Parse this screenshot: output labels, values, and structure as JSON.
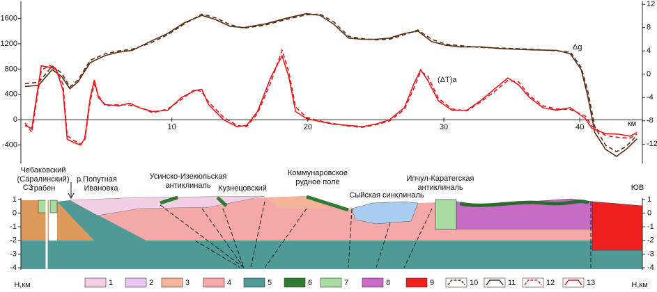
{
  "chart_data": {
    "type": "line",
    "xlabel": "км",
    "annotations": [
      "Δg",
      "(ΔT)a"
    ],
    "xlim": [
      -1.1,
      44.6
    ],
    "xticks": [
      10,
      20,
      30,
      40
    ],
    "ylim": [
      -690,
      1870
    ],
    "yticks": [
      -400,
      0,
      400,
      800,
      1200,
      1600
    ],
    "y2lim": [
      -15.3,
      12.5
    ],
    "y2ticks": [
      -12,
      -8,
      -4,
      0,
      4,
      8,
      12
    ],
    "series": [
      {
        "color": "#5a2d12",
        "style": "solid",
        "axis": "y2",
        "x": [
          -0.8,
          0.2,
          1.2,
          1.9,
          2.5,
          3.1,
          4.0,
          5.1,
          6.1,
          7.1,
          8.4,
          9.7,
          10.9,
          12.2,
          13.2,
          14.3,
          15.3,
          16.8,
          18.4,
          19.9,
          20.9,
          21.9,
          23.0,
          24.0,
          25.0,
          26.0,
          27.1,
          28.1,
          29.1,
          30.1,
          31.2,
          32.7,
          34.2,
          36.3,
          38.3,
          39.3,
          40.1,
          40.6,
          41.1,
          41.9,
          42.7,
          43.4,
          44.2
        ],
        "values": [
          -2.1,
          -1.9,
          0.8,
          -0.4,
          -2.5,
          -1.3,
          2.0,
          3.2,
          3.8,
          4.1,
          5.6,
          7.0,
          8.8,
          10.1,
          9.4,
          8.2,
          8.0,
          8.6,
          9.6,
          10.4,
          10.1,
          8.6,
          6.2,
          6.0,
          6.0,
          6.2,
          7.0,
          7.4,
          5.6,
          5.0,
          4.7,
          4.7,
          4.4,
          4.2,
          4.1,
          3.5,
          0.8,
          -3.9,
          -10.0,
          -12.9,
          -14.1,
          -12.9,
          -11.1
        ]
      },
      {
        "color": "#5a2d12",
        "style": "dashed",
        "axis": "y2",
        "x": [
          -0.8,
          0.2,
          1.2,
          1.9,
          2.5,
          3.1,
          4.0,
          5.1,
          6.1,
          7.1,
          8.4,
          9.7,
          10.9,
          12.2,
          13.2,
          14.3,
          15.3,
          16.8,
          18.4,
          19.9,
          20.9,
          21.9,
          23.0,
          24.0,
          25.0,
          26.0,
          27.1,
          28.1,
          29.1,
          30.1,
          31.2,
          32.7,
          34.2,
          36.3,
          38.3,
          39.3,
          40.1,
          40.6,
          41.1,
          41.9,
          42.7,
          43.4,
          44.2
        ],
        "values": [
          -1.6,
          -1.4,
          1.4,
          0.2,
          -2.2,
          -1.0,
          2.4,
          3.5,
          4.0,
          4.3,
          5.3,
          6.8,
          8.6,
          10.3,
          9.7,
          8.5,
          7.9,
          8.4,
          9.4,
          10.2,
          10.3,
          9.0,
          6.5,
          6.1,
          5.9,
          6.0,
          6.8,
          7.6,
          6.0,
          5.2,
          4.9,
          4.6,
          4.5,
          4.3,
          4.0,
          3.8,
          1.2,
          -3.0,
          -9.0,
          -12.2,
          -13.3,
          -12.4,
          -10.5
        ]
      },
      {
        "color": "#e8161b",
        "style": "solid",
        "x": [
          -0.8,
          -0.3,
          0.4,
          1.0,
          1.5,
          2.0,
          2.3,
          2.8,
          3.3,
          3.6,
          4.0,
          4.3,
          4.6,
          5.1,
          6.1,
          6.9,
          7.6,
          8.6,
          9.7,
          10.7,
          11.7,
          12.2,
          12.7,
          13.8,
          14.8,
          15.5,
          16.3,
          17.3,
          18.1,
          18.6,
          19.1,
          19.9,
          20.9,
          21.9,
          23.0,
          24.0,
          25.0,
          26.0,
          27.1,
          27.8,
          28.3,
          28.8,
          29.6,
          30.6,
          31.7,
          32.7,
          33.7,
          34.7,
          35.5,
          36.3,
          37.3,
          38.3,
          39.3,
          40.4,
          40.9,
          41.9,
          42.9,
          43.7,
          44.2
        ],
        "values": [
          -90,
          -140,
          850,
          830,
          800,
          460,
          -310,
          -360,
          -400,
          -290,
          350,
          630,
          350,
          240,
          220,
          260,
          190,
          130,
          150,
          350,
          460,
          480,
          240,
          0,
          -110,
          -90,
          130,
          680,
          1010,
          680,
          130,
          20,
          -30,
          -70,
          -90,
          -110,
          -70,
          0,
          190,
          570,
          790,
          630,
          300,
          150,
          150,
          300,
          480,
          660,
          550,
          350,
          190,
          150,
          190,
          20,
          -140,
          -220,
          -230,
          -260,
          -200
        ]
      },
      {
        "color": "#e8161b",
        "style": "dashed",
        "x": [
          -0.8,
          -0.3,
          0.4,
          1.0,
          1.5,
          2.0,
          2.3,
          2.8,
          3.3,
          3.6,
          4.0,
          4.3,
          4.6,
          5.1,
          6.1,
          6.9,
          7.6,
          8.6,
          9.7,
          10.7,
          11.7,
          12.2,
          12.7,
          13.8,
          14.8,
          15.5,
          16.3,
          17.3,
          18.1,
          18.6,
          19.1,
          19.9,
          20.9,
          21.9,
          23.0,
          24.0,
          25.0,
          26.0,
          27.1,
          27.8,
          28.3,
          28.8,
          29.6,
          30.6,
          31.7,
          32.7,
          33.7,
          34.7,
          35.5,
          36.3,
          37.3,
          38.3,
          39.3,
          40.4,
          40.9,
          41.9,
          42.9,
          43.7,
          44.2
        ],
        "values": [
          -50,
          -200,
          780,
          860,
          780,
          560,
          -250,
          -330,
          -380,
          -330,
          300,
          560,
          380,
          220,
          240,
          230,
          200,
          110,
          170,
          320,
          480,
          440,
          280,
          40,
          -90,
          -110,
          100,
          600,
          1100,
          760,
          200,
          40,
          -20,
          -60,
          -100,
          -120,
          -80,
          -20,
          160,
          500,
          760,
          700,
          340,
          170,
          140,
          280,
          440,
          620,
          600,
          380,
          220,
          170,
          160,
          60,
          -100,
          -250,
          -280,
          -290,
          -230
        ]
      }
    ]
  },
  "section": {
    "compass_left": "СЗ",
    "compass_right": "ЮВ",
    "depth_label": "Н,км",
    "ylim": [
      -4.1,
      1.1
    ],
    "yticks": [
      1,
      0,
      -1,
      -2,
      -3,
      -4
    ],
    "structures": [
      [
        "Чебаковский",
        "(Саралинский)",
        "грабен"
      ],
      [
        "р.Попутная"
      ],
      [
        "Ивановка"
      ],
      [
        "Усинско-Изекюльская",
        "антиклиналь"
      ],
      [
        "Кузнецовский"
      ],
      [
        "Коммунаровское",
        "рудное поле"
      ],
      [
        "Сыйская синклиналь"
      ],
      [
        "Ипчул-Каратегская",
        "антиклиналь"
      ]
    ],
    "legend": [
      "1",
      "2",
      "3",
      "4",
      "5",
      "6",
      "7",
      "8",
      "9",
      "10",
      "11",
      "12",
      "13"
    ]
  }
}
